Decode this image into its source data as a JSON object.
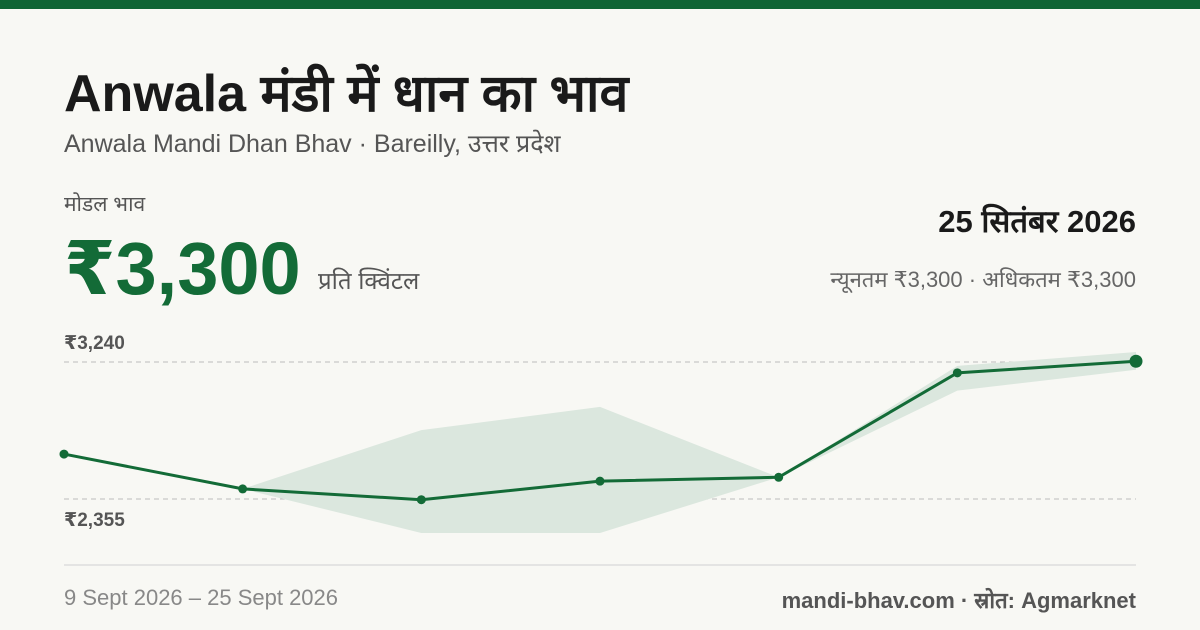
{
  "title": "Anwala मंडी में धान का भाव",
  "subtitle": "Anwala Mandi Dhan Bhav · Bareilly, उत्तर प्रदेश",
  "modal_label": "मोडल भाव",
  "price": "₹3,300",
  "unit": "प्रति क्विंटल",
  "date": "25 सितंबर 2026",
  "range": "न्यूनतम ₹3,300 · अधिकतम ₹3,300",
  "period": "9 Sept 2026 – 25 Sept 2026",
  "source": "mandi-bhav.com · स्रोत: Agmarknet",
  "chart_data": {
    "type": "line",
    "categories": [
      null,
      null,
      null,
      null,
      null,
      null,
      null
    ],
    "values": [
      2645,
      2420,
      2350,
      2470,
      2495,
      3170,
      3245
    ],
    "low": [
      null,
      2420,
      2135,
      2135,
      2495,
      3055,
      3190
    ],
    "high": [
      null,
      2420,
      2800,
      2950,
      2495,
      3215,
      3305
    ],
    "color": "#136b37",
    "band_color": "#dbe7de",
    "ylim": [
      2135,
      3350
    ],
    "yticks": [
      {
        "value": 3240,
        "label": "₹3,240"
      },
      {
        "value": 2355,
        "label": "₹2,355"
      }
    ],
    "grid": true
  }
}
